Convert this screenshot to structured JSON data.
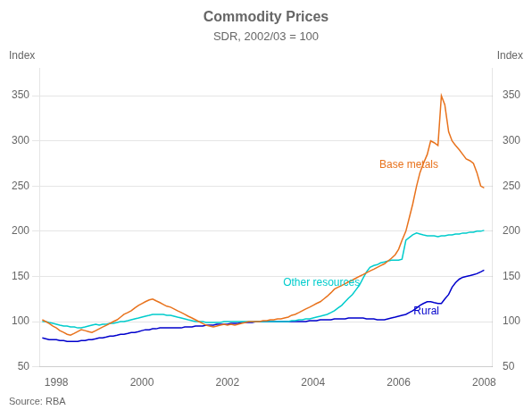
{
  "chart_data": {
    "type": "line",
    "title": "Commodity Prices",
    "subtitle": "SDR, 2002/03 = 100",
    "ylabel": "Index",
    "y2label": "Index",
    "source": "Source: RBA",
    "x": [
      1997.67,
      1997.75,
      1997.83,
      1997.92,
      1998.0,
      1998.08,
      1998.17,
      1998.25,
      1998.33,
      1998.42,
      1998.5,
      1998.58,
      1998.67,
      1998.75,
      1998.83,
      1998.92,
      1999.0,
      1999.08,
      1999.17,
      1999.25,
      1999.33,
      1999.42,
      1999.5,
      1999.58,
      1999.67,
      1999.75,
      1999.83,
      1999.92,
      2000.0,
      2000.08,
      2000.17,
      2000.25,
      2000.33,
      2000.42,
      2000.5,
      2000.58,
      2000.67,
      2000.75,
      2000.83,
      2000.92,
      2001.0,
      2001.08,
      2001.17,
      2001.25,
      2001.33,
      2001.42,
      2001.5,
      2001.58,
      2001.67,
      2001.75,
      2001.83,
      2001.92,
      2002.0,
      2002.08,
      2002.17,
      2002.25,
      2002.33,
      2002.42,
      2002.5,
      2002.58,
      2002.67,
      2002.75,
      2002.83,
      2002.92,
      2003.0,
      2003.08,
      2003.17,
      2003.25,
      2003.33,
      2003.42,
      2003.5,
      2003.58,
      2003.67,
      2003.75,
      2003.83,
      2003.92,
      2004.0,
      2004.08,
      2004.17,
      2004.25,
      2004.33,
      2004.42,
      2004.5,
      2004.58,
      2004.67,
      2004.75,
      2004.83,
      2004.92,
      2005.0,
      2005.08,
      2005.17,
      2005.25,
      2005.33,
      2005.42,
      2005.5,
      2005.58,
      2005.67,
      2005.75,
      2005.83,
      2005.92,
      2006.0,
      2006.08,
      2006.17,
      2006.25,
      2006.33,
      2006.42,
      2006.5,
      2006.58,
      2006.67,
      2006.75,
      2006.83,
      2006.92,
      2007.0,
      2007.08,
      2007.17,
      2007.25,
      2007.33,
      2007.42,
      2007.5,
      2007.58,
      2007.67,
      2007.75,
      2007.83,
      2007.92,
      2008.0
    ],
    "series": [
      {
        "name": "Base metals",
        "color": "#E8721C",
        "values": [
          102,
          100,
          98,
          95,
          93,
          90,
          88,
          86,
          85,
          87,
          89,
          91,
          90,
          89,
          88,
          90,
          92,
          94,
          96,
          98,
          100,
          102,
          105,
          108,
          110,
          112,
          115,
          118,
          120,
          122,
          124,
          125,
          123,
          121,
          119,
          117,
          116,
          114,
          112,
          110,
          108,
          106,
          104,
          102,
          100,
          98,
          96,
          95,
          94,
          95,
          96,
          97,
          96,
          97,
          96,
          97,
          98,
          99,
          100,
          100,
          100,
          100,
          101,
          101,
          102,
          102,
          103,
          103,
          104,
          105,
          107,
          108,
          110,
          112,
          114,
          116,
          118,
          120,
          122,
          125,
          128,
          132,
          136,
          138,
          140,
          142,
          144,
          146,
          148,
          150,
          152,
          154,
          156,
          158,
          160,
          162,
          164,
          167,
          170,
          174,
          180,
          190,
          200,
          215,
          230,
          250,
          265,
          275,
          285,
          300,
          298,
          295,
          350,
          340,
          310,
          300,
          295,
          290,
          285,
          280,
          278,
          275,
          265,
          250,
          248
        ]
      },
      {
        "name": "Other resources",
        "color": "#00CCCC",
        "values": [
          100,
          100,
          99,
          98,
          97,
          96,
          95,
          95,
          94,
          94,
          93,
          93,
          94,
          95,
          96,
          97,
          96,
          97,
          97,
          98,
          98,
          99,
          100,
          100,
          101,
          102,
          103,
          104,
          105,
          106,
          107,
          108,
          108,
          108,
          108,
          107,
          107,
          106,
          105,
          104,
          103,
          102,
          101,
          100,
          100,
          100,
          99,
          99,
          99,
          99,
          99,
          100,
          100,
          100,
          100,
          100,
          100,
          100,
          100,
          100,
          100,
          100,
          100,
          100,
          100,
          100,
          100,
          100,
          100,
          100,
          101,
          101,
          102,
          102,
          103,
          103,
          104,
          105,
          106,
          107,
          108,
          110,
          112,
          115,
          118,
          122,
          126,
          130,
          135,
          140,
          148,
          155,
          160,
          162,
          163,
          165,
          166,
          167,
          168,
          168,
          168,
          169,
          190,
          193,
          196,
          198,
          197,
          196,
          195,
          195,
          195,
          194,
          195,
          195,
          196,
          196,
          197,
          197,
          198,
          198,
          199,
          199,
          200,
          200,
          201
        ]
      },
      {
        "name": "Rural",
        "color": "#0000CC",
        "values": [
          82,
          81,
          80,
          80,
          80,
          79,
          79,
          78,
          78,
          78,
          78,
          79,
          79,
          80,
          80,
          81,
          82,
          82,
          83,
          84,
          84,
          85,
          86,
          86,
          87,
          88,
          88,
          89,
          90,
          91,
          91,
          92,
          92,
          93,
          93,
          93,
          93,
          93,
          93,
          93,
          94,
          94,
          94,
          95,
          95,
          95,
          96,
          96,
          96,
          97,
          97,
          97,
          97,
          98,
          98,
          98,
          99,
          99,
          99,
          99,
          100,
          100,
          100,
          100,
          100,
          100,
          100,
          100,
          100,
          100,
          100,
          100,
          100,
          100,
          100,
          101,
          101,
          101,
          102,
          102,
          102,
          102,
          103,
          103,
          103,
          103,
          104,
          104,
          104,
          104,
          104,
          103,
          103,
          103,
          102,
          102,
          102,
          103,
          104,
          105,
          106,
          107,
          108,
          110,
          112,
          115,
          118,
          120,
          122,
          122,
          121,
          120,
          120,
          125,
          130,
          138,
          143,
          147,
          149,
          150,
          151,
          152,
          153,
          155,
          157
        ]
      }
    ],
    "xlim": [
      1997.6,
      2008.2
    ],
    "xticks": [
      1998,
      2000,
      2002,
      2004,
      2006,
      2008
    ],
    "ylim": [
      50,
      380
    ],
    "yticks": [
      50,
      100,
      150,
      200,
      250,
      300,
      350
    ],
    "y2lim": [
      50,
      380
    ],
    "y2ticks": [
      50,
      100,
      150,
      200,
      250,
      300,
      350
    ],
    "grid": "y",
    "annotations": [
      {
        "text": "Base metals",
        "x": 2005.55,
        "y": 270,
        "color": "#E8721C"
      },
      {
        "text": "Other resources",
        "x": 2003.3,
        "y": 140,
        "color": "#00CCCC"
      },
      {
        "text": "Rural",
        "x": 2006.35,
        "y": 108,
        "color": "#0000CC"
      }
    ]
  }
}
